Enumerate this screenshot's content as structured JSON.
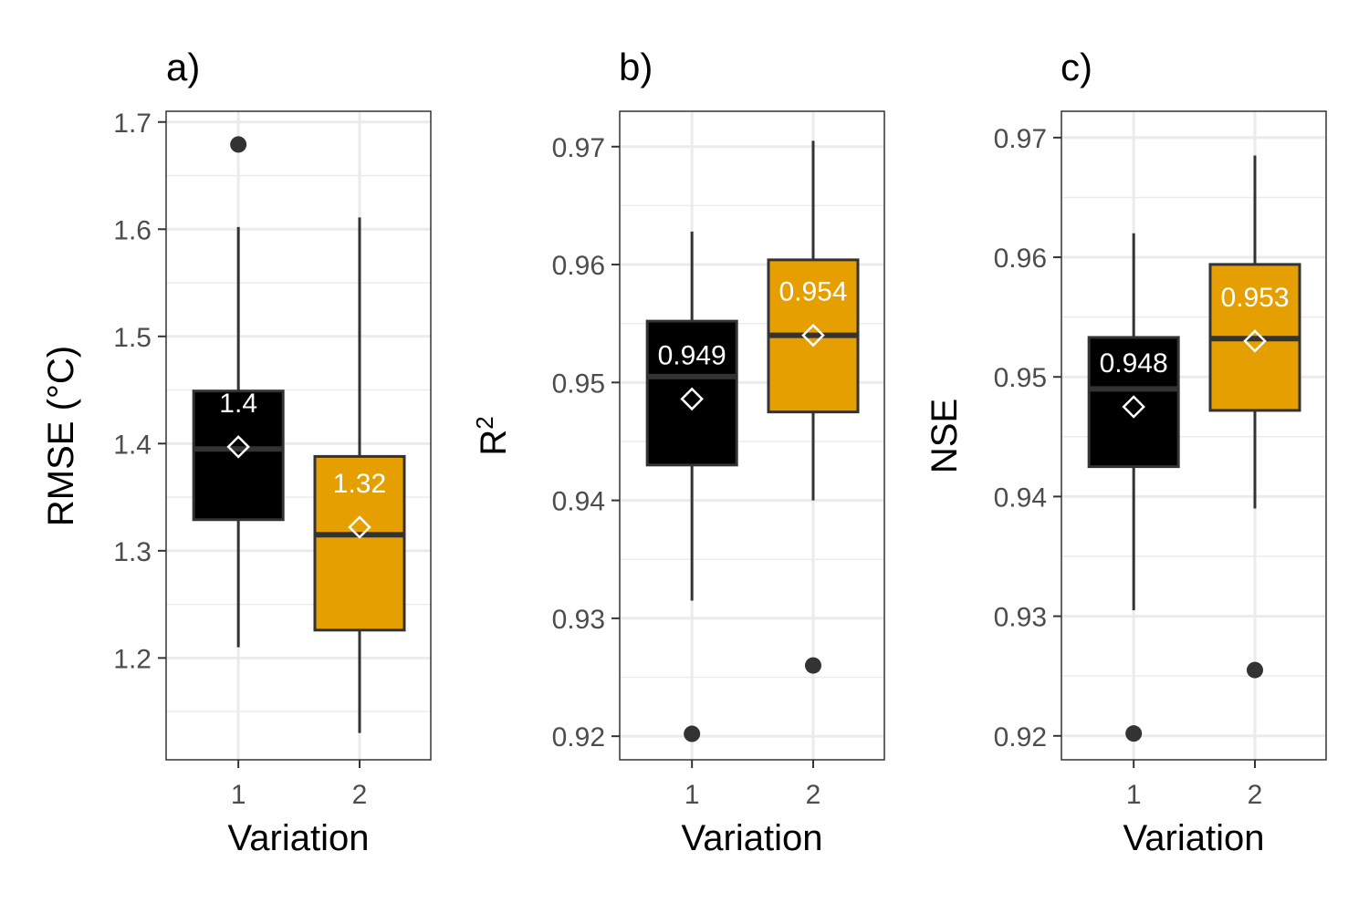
{
  "colors": {
    "variation_1": "#000000",
    "variation_2": "#E69F00",
    "box_outline": "#333333",
    "grid": "#ebebeb",
    "mean_marker": "#ffffff"
  },
  "chart_data": [
    {
      "type": "boxplot",
      "panel_label": "a)",
      "xlabel": "Variation",
      "ylabel": "RMSE (°C)",
      "categories": [
        "1",
        "2"
      ],
      "ylim": [
        1.105,
        1.71
      ],
      "yticks": [
        1.2,
        1.3,
        1.4,
        1.5,
        1.6,
        1.7
      ],
      "ytick_labels": [
        "1.2",
        "1.3",
        "1.4",
        "1.5",
        "1.6",
        "1.7"
      ],
      "boxes": [
        {
          "whisker_low": 1.21,
          "q1": 1.329,
          "median": 1.395,
          "q3": 1.449,
          "whisker_high": 1.602,
          "mean": 1.397,
          "mean_label": "1.4",
          "outliers": [
            1.679
          ]
        },
        {
          "whisker_low": 1.13,
          "q1": 1.226,
          "median": 1.315,
          "q3": 1.388,
          "whisker_high": 1.611,
          "mean": 1.322,
          "mean_label": "1.32",
          "outliers": []
        }
      ],
      "grid": true
    },
    {
      "type": "boxplot",
      "panel_label": "b)",
      "xlabel": "Variation",
      "ylabel": "R",
      "ylabel_sup": "2",
      "categories": [
        "1",
        "2"
      ],
      "ylim": [
        0.918,
        0.973
      ],
      "yticks": [
        0.92,
        0.93,
        0.94,
        0.95,
        0.96,
        0.97
      ],
      "ytick_labels": [
        "0.92",
        "0.93",
        "0.94",
        "0.95",
        "0.96",
        "0.97"
      ],
      "boxes": [
        {
          "whisker_low": 0.9315,
          "q1": 0.943,
          "median": 0.9505,
          "q3": 0.9552,
          "whisker_high": 0.9628,
          "mean": 0.9486,
          "mean_label": "0.949",
          "outliers": [
            0.9202
          ]
        },
        {
          "whisker_low": 0.94,
          "q1": 0.9475,
          "median": 0.954,
          "q3": 0.9604,
          "whisker_high": 0.9705,
          "mean": 0.954,
          "mean_label": "0.954",
          "outliers": [
            0.926
          ]
        }
      ],
      "grid": true
    },
    {
      "type": "boxplot",
      "panel_label": "c)",
      "xlabel": "Variation",
      "ylabel": "NSE",
      "categories": [
        "1",
        "2"
      ],
      "ylim": [
        0.918,
        0.9722
      ],
      "yticks": [
        0.92,
        0.93,
        0.94,
        0.95,
        0.96,
        0.97
      ],
      "ytick_labels": [
        "0.92",
        "0.93",
        "0.94",
        "0.95",
        "0.96",
        "0.97"
      ],
      "boxes": [
        {
          "whisker_low": 0.9305,
          "q1": 0.9425,
          "median": 0.949,
          "q3": 0.9533,
          "whisker_high": 0.962,
          "mean": 0.9475,
          "mean_label": "0.948",
          "outliers": [
            0.9202
          ]
        },
        {
          "whisker_low": 0.939,
          "q1": 0.9472,
          "median": 0.9532,
          "q3": 0.9594,
          "whisker_high": 0.9685,
          "mean": 0.953,
          "mean_label": "0.953",
          "outliers": [
            0.9255
          ]
        }
      ],
      "grid": true
    }
  ]
}
